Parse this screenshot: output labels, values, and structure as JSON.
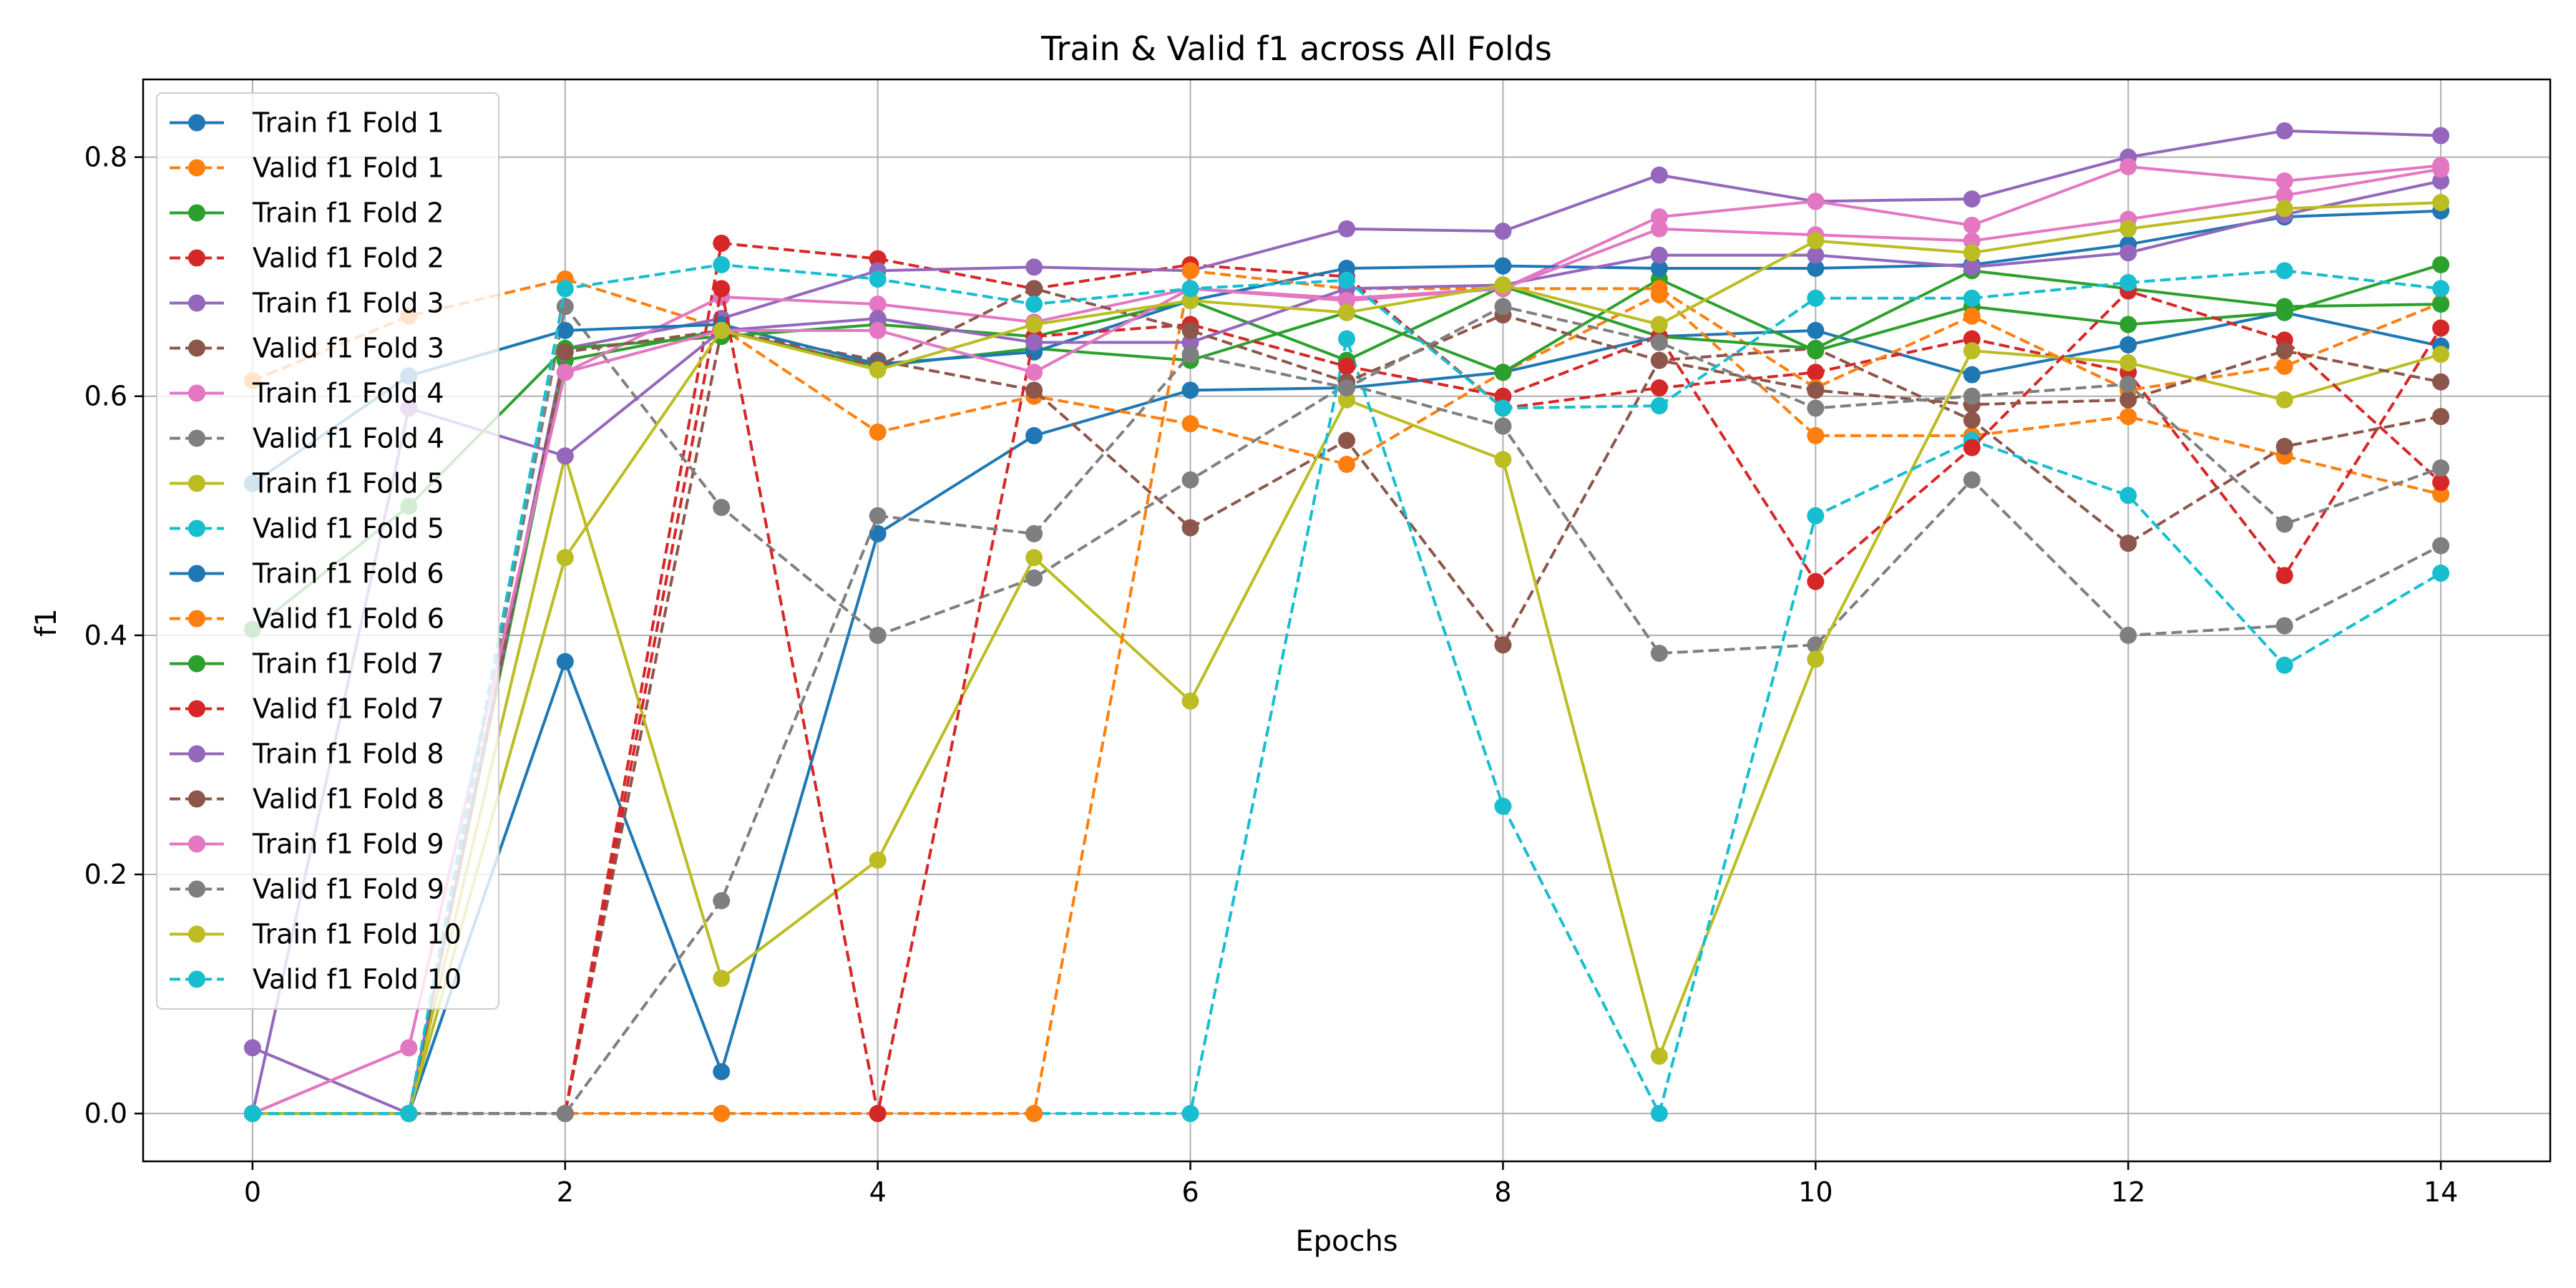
{
  "chart_data": {
    "type": "line",
    "title": "Train & Valid f1 across All Folds",
    "xlabel": "Epochs",
    "ylabel": "f1",
    "xlim": [
      -0.7,
      14.7
    ],
    "ylim": [
      -0.04,
      0.865
    ],
    "x": [
      0,
      1,
      2,
      3,
      4,
      5,
      6,
      7,
      8,
      9,
      10,
      11,
      12,
      13,
      14
    ],
    "xticks": [
      0,
      2,
      4,
      6,
      8,
      10,
      12,
      14
    ],
    "xtick_labels": [
      "0",
      "2",
      "4",
      "6",
      "8",
      "10",
      "12",
      "14"
    ],
    "yticks": [
      0.0,
      0.2,
      0.4,
      0.6,
      0.8
    ],
    "ytick_labels": [
      "0.0",
      "0.2",
      "0.4",
      "0.6",
      "0.8"
    ],
    "grid": true,
    "legend_position": "upper-left",
    "series": [
      {
        "name": "Train f1 Fold 1",
        "color": "#1f77b4",
        "style": "solid",
        "values": [
          0.0,
          0.0,
          0.378,
          0.035,
          0.485,
          0.567,
          0.605,
          0.607,
          0.62,
          0.65,
          0.655,
          0.618,
          0.643,
          0.67,
          0.642
        ]
      },
      {
        "name": "Valid f1 Fold 1",
        "color": "#ff7f0e",
        "style": "dashed",
        "values": [
          0.613,
          0.667,
          0.698,
          0.657,
          0.57,
          0.6,
          0.577,
          0.543,
          0.62,
          0.685,
          0.567,
          0.567,
          0.583,
          0.55,
          0.518
        ]
      },
      {
        "name": "Train f1 Fold 2",
        "color": "#2ca02c",
        "style": "solid",
        "values": [
          0.0,
          0.0,
          0.63,
          0.655,
          0.625,
          0.64,
          0.63,
          0.67,
          0.62,
          0.698,
          0.638,
          0.675,
          0.66,
          0.67,
          0.71
        ]
      },
      {
        "name": "Valid f1 Fold 2",
        "color": "#d62728",
        "style": "dashed",
        "values": [
          0.0,
          0.0,
          0.0,
          0.728,
          0.715,
          0.69,
          0.71,
          0.7,
          0.59,
          0.607,
          0.62,
          0.648,
          0.62,
          0.45,
          0.657
        ]
      },
      {
        "name": "Train f1 Fold 3",
        "color": "#9467bd",
        "style": "solid",
        "values": [
          0.055,
          0.0,
          0.64,
          0.665,
          0.705,
          0.708,
          0.705,
          0.74,
          0.738,
          0.785,
          0.763,
          0.765,
          0.8,
          0.822,
          0.818
        ]
      },
      {
        "name": "Valid f1 Fold 3",
        "color": "#8c564b",
        "style": "dashed",
        "values": [
          0.0,
          0.0,
          0.0,
          0.655,
          0.63,
          0.605,
          0.49,
          0.563,
          0.392,
          0.63,
          0.64,
          0.58,
          0.477,
          0.558,
          0.583
        ]
      },
      {
        "name": "Train f1 Fold 4",
        "color": "#e377c2",
        "style": "solid",
        "values": [
          0.0,
          0.055,
          0.62,
          0.683,
          0.677,
          0.662,
          0.69,
          0.682,
          0.69,
          0.75,
          0.763,
          0.743,
          0.792,
          0.78,
          0.793
        ]
      },
      {
        "name": "Valid f1 Fold 4",
        "color": "#7f7f7f",
        "style": "dashed",
        "values": [
          0.0,
          0.0,
          0.675,
          0.507,
          0.4,
          0.448,
          0.53,
          0.61,
          0.575,
          0.385,
          0.392,
          0.53,
          0.4,
          0.408,
          0.475
        ]
      },
      {
        "name": "Train f1 Fold 5",
        "color": "#bcbd22",
        "style": "solid",
        "values": [
          0.0,
          0.0,
          0.55,
          0.113,
          0.212,
          0.465,
          0.345,
          0.597,
          0.547,
          0.048,
          0.38,
          0.638,
          0.628,
          0.597,
          0.635
        ]
      },
      {
        "name": "Valid f1 Fold 5",
        "color": "#17becf",
        "style": "dashed",
        "values": [
          0.0,
          0.0,
          0.0,
          0.0,
          0.0,
          0.0,
          0.0,
          0.648,
          0.257,
          0.0,
          0.5,
          0.563,
          0.517,
          0.375,
          0.452
        ]
      },
      {
        "name": "Train f1 Fold 6",
        "color": "#1f77b4",
        "style": "solid",
        "values": [
          0.527,
          0.617,
          0.655,
          0.66,
          0.627,
          0.637,
          0.68,
          0.707,
          0.709,
          0.707,
          0.707,
          0.71,
          0.727,
          0.75,
          0.755
        ]
      },
      {
        "name": "Valid f1 Fold 6",
        "color": "#ff7f0e",
        "style": "dashed",
        "values": [
          0.0,
          0.0,
          0.0,
          0.0,
          0.0,
          0.0,
          0.705,
          0.69,
          0.69,
          0.69,
          0.607,
          0.667,
          0.605,
          0.625,
          0.678
        ]
      },
      {
        "name": "Train f1 Fold 7",
        "color": "#2ca02c",
        "style": "solid",
        "values": [
          0.405,
          0.508,
          0.64,
          0.65,
          0.66,
          0.65,
          0.68,
          0.63,
          0.692,
          0.65,
          0.64,
          0.705,
          0.69,
          0.675,
          0.677
        ]
      },
      {
        "name": "Valid f1 Fold 7",
        "color": "#d62728",
        "style": "dashed",
        "values": [
          0.0,
          0.0,
          0.0,
          0.69,
          0.0,
          0.65,
          0.66,
          0.625,
          0.6,
          0.65,
          0.445,
          0.557,
          0.688,
          0.647,
          0.528
        ]
      },
      {
        "name": "Train f1 Fold 8",
        "color": "#9467bd",
        "style": "solid",
        "values": [
          0.0,
          0.59,
          0.55,
          0.655,
          0.665,
          0.645,
          0.645,
          0.69,
          0.693,
          0.718,
          0.718,
          0.708,
          0.72,
          0.752,
          0.78
        ]
      },
      {
        "name": "Valid f1 Fold 8",
        "color": "#8c564b",
        "style": "dashed",
        "values": [
          0.0,
          0.0,
          0.637,
          0.655,
          0.625,
          0.69,
          0.655,
          0.612,
          0.668,
          0.63,
          0.605,
          0.593,
          0.597,
          0.638,
          0.612
        ]
      },
      {
        "name": "Train f1 Fold 9",
        "color": "#e377c2",
        "style": "solid",
        "values": [
          0.0,
          0.055,
          0.62,
          0.655,
          0.655,
          0.62,
          0.69,
          0.68,
          0.69,
          0.74,
          0.735,
          0.73,
          0.748,
          0.768,
          0.79
        ]
      },
      {
        "name": "Valid f1 Fold 9",
        "color": "#7f7f7f",
        "style": "dashed",
        "values": [
          0.0,
          0.0,
          0.0,
          0.178,
          0.5,
          0.485,
          0.635,
          0.607,
          0.675,
          0.645,
          0.59,
          0.6,
          0.61,
          0.493,
          0.54
        ]
      },
      {
        "name": "Train f1 Fold 10",
        "color": "#bcbd22",
        "style": "solid",
        "values": [
          0.0,
          0.0,
          0.465,
          0.655,
          0.622,
          0.66,
          0.68,
          0.67,
          0.693,
          0.66,
          0.73,
          0.72,
          0.74,
          0.757,
          0.762
        ]
      },
      {
        "name": "Valid f1 Fold 10",
        "color": "#17becf",
        "style": "dashed",
        "values": [
          0.0,
          0.0,
          0.69,
          0.71,
          0.698,
          0.677,
          0.69,
          0.697,
          0.59,
          0.592,
          0.682,
          0.682,
          0.695,
          0.705,
          0.69
        ]
      }
    ]
  }
}
